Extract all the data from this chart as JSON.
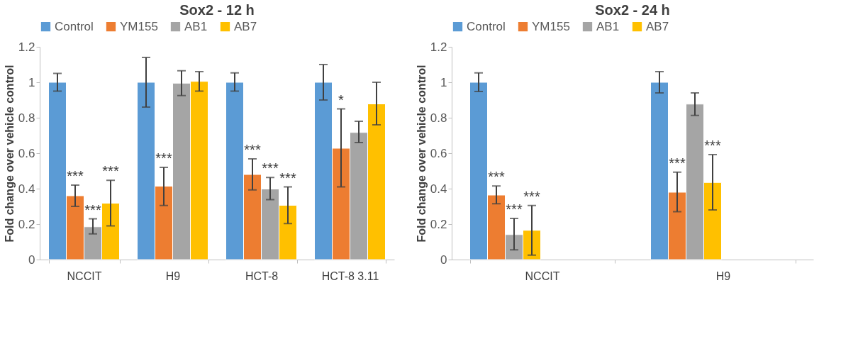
{
  "chart_data": [
    {
      "type": "bar",
      "title": "Sox2 - 12 h",
      "ylabel": "Fold change over vehicle control",
      "categories": [
        "NCCIT",
        "H9",
        "HCT-8",
        "HCT-8 3.11"
      ],
      "ylim": [
        0,
        1.2
      ],
      "yticks": [
        0,
        0.2,
        0.4,
        0.6,
        0.8,
        1,
        1.2
      ],
      "grid": false,
      "legend": "top",
      "series": [
        {
          "name": "Control",
          "color": "#5b9bd5",
          "values": [
            1,
            1,
            1,
            1
          ],
          "errors": [
            [
              0.95,
              1.05
            ],
            [
              0.86,
              1.14
            ],
            [
              0.95,
              1.053
            ],
            [
              0.9,
              1.1
            ]
          ]
        },
        {
          "name": "YM155",
          "color": "#ed7d31",
          "values": [
            0.36,
            0.414,
            0.48,
            0.628
          ],
          "errors": [
            [
              0.3,
              0.42
            ],
            [
              0.305,
              0.52
            ],
            [
              0.393,
              0.568
            ],
            [
              0.41,
              0.85
            ]
          ],
          "value_labels": [
            "***",
            "***",
            "***",
            "*"
          ]
        },
        {
          "name": "AB1",
          "color": "#a5a5a5",
          "values": [
            0.185,
            0.995,
            0.398,
            0.717
          ],
          "errors": [
            [
              0.145,
              0.23
            ],
            [
              0.925,
              1.065
            ],
            [
              0.338,
              0.463
            ],
            [
              0.66,
              0.78
            ]
          ],
          "value_labels": [
            "***",
            null,
            "***",
            null
          ]
        },
        {
          "name": "AB7",
          "color": "#ffc000",
          "values": [
            0.318,
            1.005,
            0.306,
            0.878
          ],
          "errors": [
            [
              0.19,
              0.447
            ],
            [
              0.95,
              1.06
            ],
            [
              0.203,
              0.41
            ],
            [
              0.76,
              1.0
            ]
          ],
          "value_labels": [
            "***",
            null,
            "***",
            null
          ]
        }
      ]
    },
    {
      "type": "bar",
      "title": "Sox2 - 24 h",
      "ylabel": "Fold change over vehicle control",
      "categories": [
        "NCCIT",
        "H9"
      ],
      "ylim": [
        0,
        1.2
      ],
      "yticks": [
        0,
        0.2,
        0.4,
        0.6,
        0.8,
        1,
        1.2
      ],
      "grid": false,
      "legend": "top",
      "series": [
        {
          "name": "Control",
          "color": "#5b9bd5",
          "values": [
            1,
            1
          ],
          "errors": [
            [
              0.948,
              1.053
            ],
            [
              0.94,
              1.06
            ]
          ]
        },
        {
          "name": "YM155",
          "color": "#ed7d31",
          "values": [
            0.364,
            0.38
          ],
          "errors": [
            [
              0.315,
              0.415
            ],
            [
              0.27,
              0.493
            ]
          ],
          "value_labels": [
            "***",
            "***"
          ]
        },
        {
          "name": "AB1",
          "color": "#a5a5a5",
          "values": [
            0.141,
            0.877
          ],
          "errors": [
            [
              0.055,
              0.232
            ],
            [
              0.813,
              0.94
            ]
          ],
          "value_labels": [
            "***",
            null
          ]
        },
        {
          "name": "AB7",
          "color": "#ffc000",
          "values": [
            0.165,
            0.435
          ],
          "errors": [
            [
              0.025,
              0.305
            ],
            [
              0.28,
              0.592
            ]
          ],
          "value_labels": [
            "***",
            "***"
          ]
        }
      ]
    }
  ]
}
